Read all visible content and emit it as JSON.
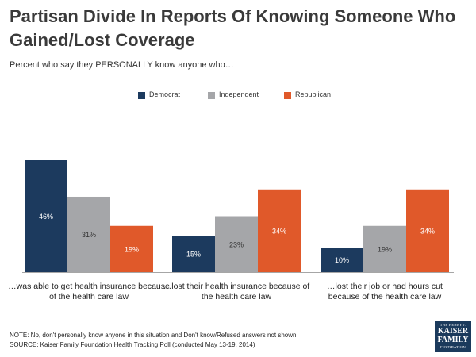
{
  "chart_data": {
    "type": "bar",
    "title": "Partisan Divide In Reports Of Knowing Someone Who Gained/Lost Coverage",
    "subtitle": "Percent who say they PERSONALLY know anyone who…",
    "categories": [
      "…was able to get health insurance because of the health care law",
      "…lost their health insurance because of the health care law",
      "…lost their job or had hours cut because of the health care law"
    ],
    "series": [
      {
        "name": "Democrat",
        "color": "#1c3a5e",
        "values": [
          46,
          15,
          10
        ],
        "labels": [
          "46%",
          "15%",
          "10%"
        ]
      },
      {
        "name": "Independent",
        "color": "#a5a6a9",
        "values": [
          31,
          23,
          19
        ],
        "labels": [
          "31%",
          "23%",
          "19%"
        ]
      },
      {
        "name": "Republican",
        "color": "#e0592a",
        "values": [
          19,
          34,
          34
        ],
        "labels": [
          "19%",
          "34%",
          "34%"
        ]
      }
    ],
    "ylim": [
      0,
      46
    ],
    "xlabel": "",
    "ylabel": "",
    "grid": false,
    "legend": "top-center"
  },
  "footer": {
    "note": "NOTE: No, don't personally know anyone in this situation and Don't know/Refused answers not shown.",
    "source": "SOURCE: Kaiser Family Foundation Health Tracking Poll (conducted May 13-19, 2014)"
  },
  "logo": {
    "line1": "THE HENRY J.",
    "line2": "KAISER",
    "line3": "FAMILY",
    "line4": "FOUNDATION"
  }
}
